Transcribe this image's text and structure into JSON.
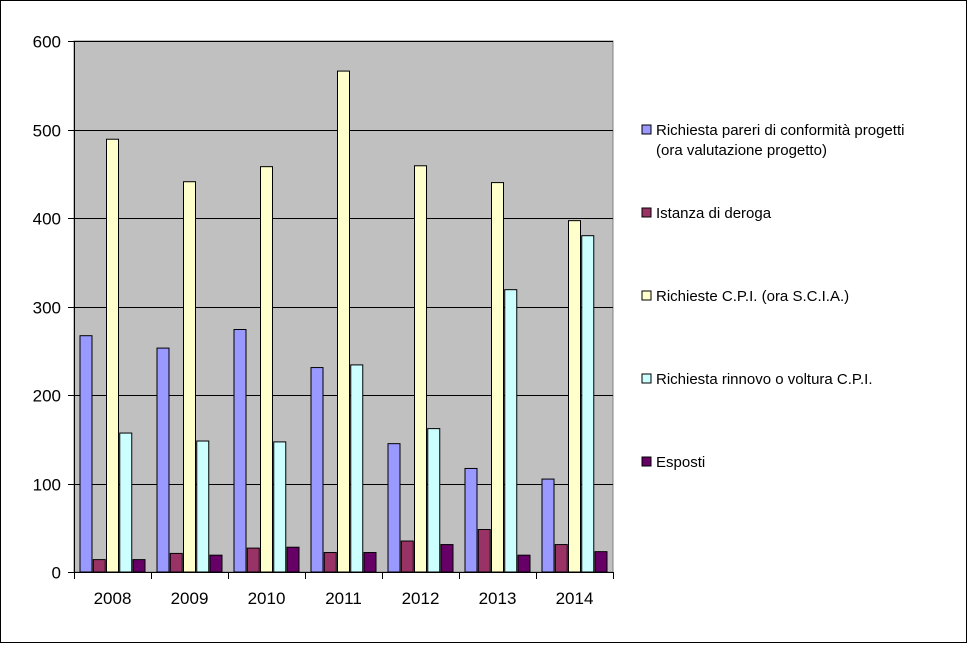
{
  "chart_data": {
    "type": "bar",
    "title": "",
    "xlabel": "",
    "ylabel": "",
    "ylim": [
      0,
      600
    ],
    "yticks": [
      0,
      100,
      200,
      300,
      400,
      500,
      600
    ],
    "grid": "horizontal",
    "plot_background": "#c0c0c0",
    "legend_position": "right",
    "categories": [
      "2008",
      "2009",
      "2010",
      "2011",
      "2012",
      "2013",
      "2014"
    ],
    "series": [
      {
        "name": "Richiesta pareri di conformità progetti (ora valutazione progetto)",
        "legend_lines": [
          "Richiesta pareri di conformità progetti",
          "(ora valutazione progetto)"
        ],
        "color": "#9999ff",
        "values": [
          267,
          253,
          274,
          231,
          145,
          117,
          105
        ]
      },
      {
        "name": "Istanza di deroga",
        "legend_lines": [
          "Istanza di deroga"
        ],
        "color": "#993366",
        "values": [
          14,
          21,
          27,
          22,
          35,
          48,
          31
        ]
      },
      {
        "name": "Richieste C.P.I. (ora S.C.I.A.)",
        "legend_lines": [
          "Richieste C.P.I. (ora S.C.I.A.)"
        ],
        "color": "#ffffcc",
        "values": [
          489,
          441,
          458,
          566,
          459,
          440,
          397
        ]
      },
      {
        "name": "Richiesta rinnovo o voltura C.P.I.",
        "legend_lines": [
          "Richiesta rinnovo o voltura C.P.I."
        ],
        "color": "#ccffff",
        "values": [
          157,
          148,
          147,
          234,
          162,
          319,
          380
        ]
      },
      {
        "name": "Esposti",
        "legend_lines": [
          "Esposti"
        ],
        "color": "#660066",
        "values": [
          14,
          19,
          28,
          22,
          31,
          19,
          23
        ]
      }
    ]
  }
}
